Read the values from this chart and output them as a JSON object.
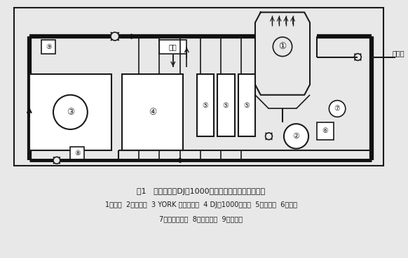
{
  "title_line1": "图1   循环冷却水DJ－1000自动排污自动加药控制系统",
  "title_line2": "1冷却塔  2冷却水泵  3 YORK 机组冷凝器  4 DJ－1000控制器  5加药装置  6电磁阀",
  "title_line3": "7电子脉冲水表  8电导率探头  9流量开关",
  "bg_color": "#e8e8e8",
  "line_color": "#1a1a1a",
  "thick_line_color": "#111111",
  "fig_width": 5.82,
  "fig_height": 3.69
}
